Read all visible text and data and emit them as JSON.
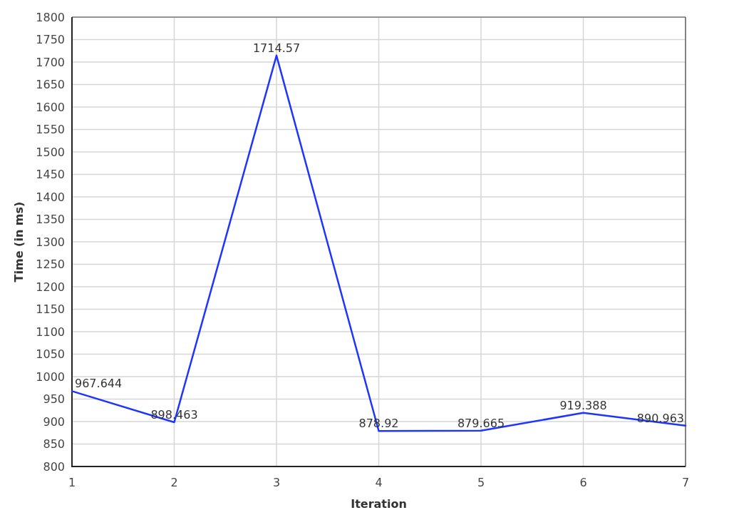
{
  "chart_data": {
    "type": "line",
    "xlabel": "Iteration",
    "ylabel": "Time (in ms)",
    "x": [
      1,
      2,
      3,
      4,
      5,
      6,
      7
    ],
    "series": [
      {
        "color": "#1f35ff",
        "values": [
          967.644,
          898.463,
          1714.57,
          878.92,
          879.665,
          919.388,
          890.963
        ]
      }
    ],
    "xlim": [
      1,
      7
    ],
    "xticks": [
      1,
      2,
      3,
      4,
      5,
      6,
      7
    ],
    "ylim": [
      800,
      1800
    ],
    "yticks": [
      800,
      850,
      900,
      950,
      1000,
      1050,
      1100,
      1150,
      1200,
      1250,
      1300,
      1350,
      1400,
      1450,
      1500,
      1550,
      1600,
      1650,
      1700,
      1750,
      1800
    ],
    "grid": true,
    "data_labels": true,
    "marker": "none"
  }
}
